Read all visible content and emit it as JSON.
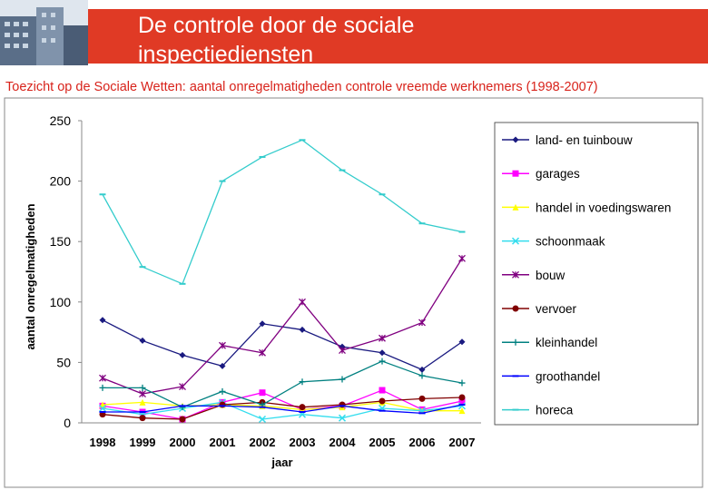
{
  "chart_data": {
    "type": "line",
    "header_title": "De controle door de sociale inspectiediensten",
    "title": "Toezicht op de Sociale Wetten: aantal onregelmatigheden controle vreemde werknemers (1998-2007)",
    "y_label": "aantal onregelmatigheden",
    "x_label": "jaar",
    "categories": [
      "1998",
      "1999",
      "2000",
      "2001",
      "2002",
      "2003",
      "2004",
      "2005",
      "2006",
      "2007"
    ],
    "ylim": [
      0,
      250
    ],
    "yticks": [
      0,
      50,
      100,
      150,
      200,
      250
    ],
    "series": [
      {
        "name": "land- en tuinbouw",
        "color": "#1a1a80",
        "marker": "diamond",
        "values": [
          85,
          68,
          56,
          47,
          82,
          77,
          63,
          58,
          44,
          67
        ]
      },
      {
        "name": "garages",
        "color": "#ff00ff",
        "marker": "square",
        "values": [
          14,
          9,
          3,
          17,
          25,
          11,
          14,
          27,
          11,
          18
        ]
      },
      {
        "name": "handel in voedingswaren",
        "color": "#ffff00",
        "marker": "triangle",
        "values": [
          15,
          17,
          14,
          15,
          14,
          11,
          13,
          17,
          10,
          10
        ]
      },
      {
        "name": "schoonmaak",
        "color": "#33ddee",
        "marker": "x",
        "values": [
          12,
          7,
          12,
          17,
          3,
          7,
          4,
          12,
          10,
          14
        ]
      },
      {
        "name": "bouw",
        "color": "#800080",
        "marker": "star",
        "values": [
          37,
          24,
          30,
          64,
          58,
          100,
          60,
          70,
          83,
          136
        ]
      },
      {
        "name": "vervoer",
        "color": "#800000",
        "marker": "circle",
        "values": [
          7,
          4,
          3,
          15,
          17,
          13,
          15,
          18,
          20,
          21
        ]
      },
      {
        "name": "kleinhandel",
        "color": "#008080",
        "marker": "plus",
        "values": [
          29,
          29,
          13,
          26,
          15,
          34,
          36,
          51,
          39,
          33
        ]
      },
      {
        "name": "groothandel",
        "color": "#0000ff",
        "marker": "dash",
        "values": [
          9,
          9,
          14,
          14,
          13,
          9,
          14,
          10,
          8,
          15
        ]
      },
      {
        "name": "horeca",
        "color": "#33cccc",
        "marker": "dash",
        "values": [
          189,
          129,
          115,
          200,
          220,
          234,
          209,
          189,
          165,
          158
        ]
      }
    ]
  }
}
